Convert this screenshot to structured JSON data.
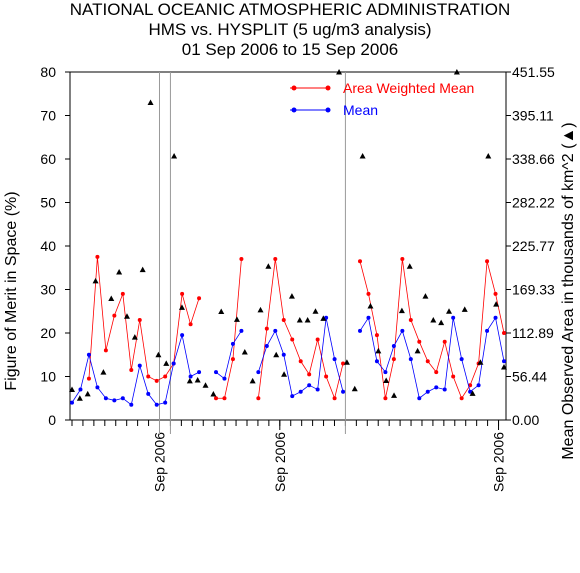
{
  "header": {
    "title": "NATIONAL OCEANIC ATMOSPHERIC ADMINISTRATION",
    "subtitle": "HMS vs. HYSPLIT (5 ug/m3 analysis)",
    "date_range": "01 Sep 2006 to 15 Sep 2006"
  },
  "chart_data": {
    "type": "line",
    "title": "NATIONAL OCEANIC ATMOSPHERIC ADMINISTRATION",
    "subtitle": "HMS vs. HYSPLIT (5 ug/m3 analysis) — 01 Sep 2006 to 15 Sep 2006",
    "ylabel": "Figure of Merit in Space (%)",
    "y2label": "Mean Observed Area in thousands of km^2 (▲)",
    "ylim": [
      0,
      80
    ],
    "y2lim": [
      0,
      451.55
    ],
    "y_ticks": [
      "0",
      "10",
      "20",
      "30",
      "40",
      "50",
      "60",
      "70",
      "80"
    ],
    "y2_ticks": [
      "0.00",
      "56.44",
      "112.89",
      "169.33",
      "225.77",
      "282.22",
      "338.66",
      "395.11",
      "451.55"
    ],
    "x_tick_labels": [
      "Sep 2006",
      "Sep 2006",
      "Sep 2006"
    ],
    "x_point_count": 80,
    "grid": false,
    "legend_position": "top-right",
    "series": [
      {
        "name": "Area Weighted Mean",
        "color": "#ff0000",
        "values": [
          null,
          null,
          9.5,
          37.5,
          16,
          24,
          29,
          11.5,
          23,
          10,
          9,
          10,
          13,
          29,
          22,
          28,
          null,
          5,
          5,
          14,
          37,
          null,
          5,
          21,
          37,
          23,
          18.5,
          13.5,
          10.5,
          18.5,
          10,
          5,
          13,
          null,
          36.5,
          29,
          19.5,
          5,
          14,
          37,
          23,
          18,
          13.5,
          11,
          18,
          10,
          5,
          8,
          13,
          36.5,
          29,
          20
        ]
      },
      {
        "name": "Mean",
        "color": "#0000ff",
        "values": [
          4,
          7,
          15,
          7.5,
          5,
          4.5,
          5,
          3.5,
          12.5,
          6,
          3.5,
          4,
          13,
          19.5,
          10,
          11,
          null,
          11,
          9.5,
          17.5,
          20.5,
          null,
          11,
          17,
          20.5,
          15,
          5.5,
          6.5,
          8,
          7,
          23.5,
          14,
          6.5,
          null,
          20.5,
          23.5,
          13.5,
          11,
          17,
          20.5,
          14,
          5,
          6.5,
          7.5,
          7,
          23.5,
          14,
          6.5,
          8,
          20.5,
          23.5,
          13.5
        ]
      },
      {
        "name": "Mean Observed Area",
        "marker": "triangle",
        "color": "#000000",
        "axis": "right",
        "values": [
          39.5,
          28.2,
          33.9,
          180.6,
          62.1,
          157.7,
          192.1,
          134.7,
          107.5,
          195.1,
          412,
          84.7,
          73.4,
          342.6,
          146.2,
          50.8,
          51.9,
          45.1,
          33.8,
          140.8,
          null,
          130.6,
          88.3,
          50.8,
          142.9,
          199.5,
          84.7,
          59.3,
          160.8,
          129.8,
          129.8,
          141.1,
          131.9,
          null,
          451.6,
          75,
          40.5,
          342.6,
          147.9,
          89.7,
          51.3,
          31.9,
          142,
          199.5,
          89.7,
          160.8,
          129.8,
          126.4,
          141.1,
          451.6,
          143.5,
          34.5,
          75,
          342.6,
          150.4,
          68.8
        ]
      }
    ],
    "vertical_lines_at_index": [
      16,
      18,
      50
    ]
  }
}
